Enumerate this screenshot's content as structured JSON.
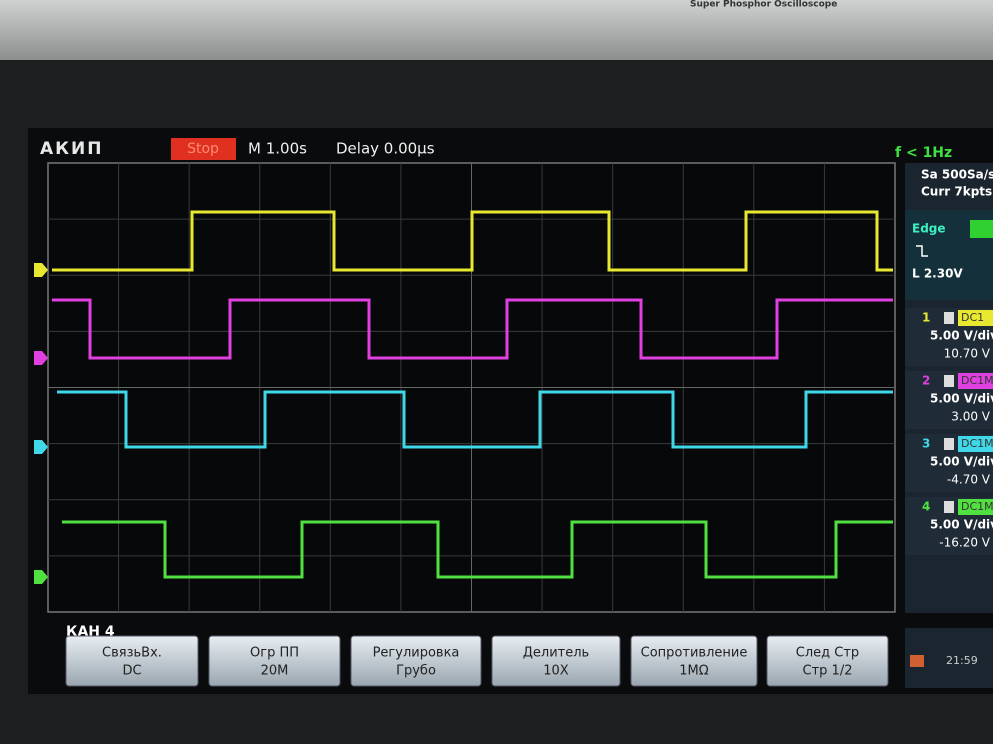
{
  "header": {
    "brand": "АКИП",
    "state": "Stop",
    "timebase": "M 1.00s",
    "delay": "Delay 0.00μs",
    "frequency": "f < 1Hz",
    "bezel": "Super Phosphor Oscilloscope"
  },
  "panel": {
    "sample_rate": "Sa 500Sa/s",
    "memory": "Curr 7kpts",
    "trigger": "Edge",
    "trigger_level": "L 2.30V",
    "channels": [
      {
        "number": "1",
        "coupling": "DC1",
        "scale": "5.00 V/div",
        "offset": "10.70 V"
      },
      {
        "number": "2",
        "coupling": "DC1M",
        "scale": "5.00 V/div",
        "offset": "3.00 V"
      },
      {
        "number": "3",
        "coupling": "DC1M",
        "scale": "5.00 V/div",
        "offset": "-4.70 V"
      },
      {
        "number": "4",
        "coupling": "DC1M",
        "scale": "5.00 V/div",
        "offset": "-16.20 V"
      }
    ]
  },
  "menu": {
    "title": "КАН 4",
    "time": "21:59",
    "keys": [
      {
        "label": "СвязьВх.",
        "value": "DC"
      },
      {
        "label": "Огр ПП",
        "value": "20M"
      },
      {
        "label": "Регулировка",
        "value": "Грубо"
      },
      {
        "label": "Делитель",
        "value": "10X"
      },
      {
        "label": "Сопротивление",
        "value": "1MΩ"
      },
      {
        "label": "След Стр",
        "value": "Стр 1/2"
      }
    ]
  }
}
